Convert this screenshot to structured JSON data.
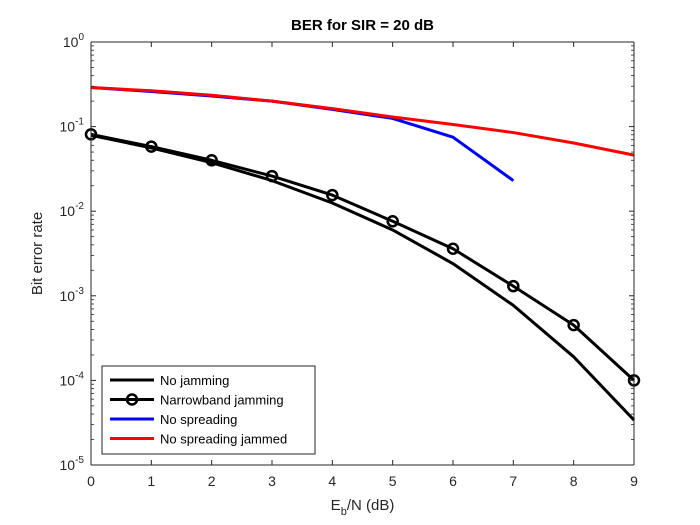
{
  "chart_data": {
    "type": "line",
    "title": "BER for SIR = 20 dB",
    "xlabel": {
      "main": "E",
      "sub": "b",
      "rest": "/N (dB)"
    },
    "ylabel": "Bit error rate",
    "xlim": [
      0,
      9
    ],
    "ylim": [
      1e-05,
      1
    ],
    "yscale": "log",
    "grid": false,
    "x_ticks": [
      "0",
      "1",
      "2",
      "3",
      "4",
      "5",
      "6",
      "7",
      "8",
      "9"
    ],
    "y_ticks": [
      {
        "value": 1,
        "base": "10",
        "exp": "0"
      },
      {
        "value": 0.1,
        "base": "10",
        "exp": "-1"
      },
      {
        "value": 0.01,
        "base": "10",
        "exp": "-2"
      },
      {
        "value": 0.001,
        "base": "10",
        "exp": "-3"
      },
      {
        "value": 0.0001,
        "base": "10",
        "exp": "-4"
      },
      {
        "value": 1e-05,
        "base": "10",
        "exp": "-5"
      }
    ],
    "legend_position": "bottom-left",
    "series": [
      {
        "name": "No jamming",
        "color": "#000000",
        "marker": "none",
        "x": [
          0,
          1,
          2,
          3,
          4,
          5,
          6,
          7,
          8,
          9
        ],
        "y": [
          0.079,
          0.056,
          0.0375,
          0.023,
          0.0125,
          0.006,
          0.0024,
          0.00077,
          0.00019,
          3.4e-05
        ]
      },
      {
        "name": "Narrowband jamming",
        "color": "#000000",
        "marker": "circle",
        "x": [
          0,
          1,
          2,
          3,
          4,
          5,
          6,
          7,
          8,
          9
        ],
        "y": [
          0.081,
          0.058,
          0.04,
          0.026,
          0.0155,
          0.0076,
          0.0036,
          0.0013,
          0.00045,
          0.0001
        ]
      },
      {
        "name": "No spreading",
        "color": "#0000ff",
        "marker": "none",
        "x": [
          0,
          1,
          2,
          3,
          4,
          5,
          6,
          7
        ],
        "y": [
          0.29,
          0.26,
          0.23,
          0.2,
          0.16,
          0.125,
          0.075,
          0.023
        ]
      },
      {
        "name": "No spreading jammed",
        "color": "#ff0000",
        "marker": "none",
        "x": [
          0,
          1,
          2,
          3,
          4,
          5,
          6,
          7,
          8,
          9
        ],
        "y": [
          0.29,
          0.265,
          0.235,
          0.2,
          0.163,
          0.13,
          0.106,
          0.085,
          0.064,
          0.046
        ]
      }
    ]
  }
}
